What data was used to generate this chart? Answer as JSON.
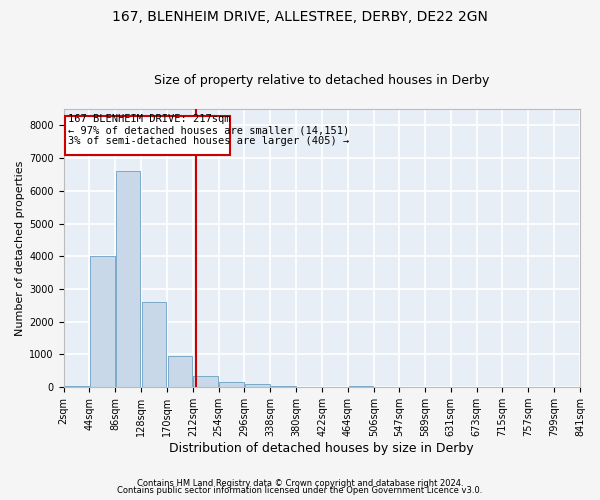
{
  "title1": "167, BLENHEIM DRIVE, ALLESTREE, DERBY, DE22 2GN",
  "title2": "Size of property relative to detached houses in Derby",
  "xlabel": "Distribution of detached houses by size in Derby",
  "ylabel": "Number of detached properties",
  "annotation_line1": "167 BLENHEIM DRIVE: 217sqm",
  "annotation_line2": "← 97% of detached houses are smaller (14,151)",
  "annotation_line3": "3% of semi-detached houses are larger (405) →",
  "footer1": "Contains HM Land Registry data © Crown copyright and database right 2024.",
  "footer2": "Contains public sector information licensed under the Open Government Licence v3.0.",
  "property_size": 217,
  "bin_edges": [
    2,
    44,
    86,
    128,
    170,
    212,
    254,
    296,
    338,
    380,
    422,
    464,
    506,
    547,
    589,
    631,
    673,
    715,
    757,
    799,
    841
  ],
  "bar_heights": [
    50,
    4000,
    6600,
    2600,
    950,
    350,
    150,
    100,
    50,
    0,
    0,
    50,
    0,
    0,
    0,
    0,
    0,
    0,
    0,
    0
  ],
  "bar_color": "#c8d8e8",
  "bar_edgecolor": "#7aaac8",
  "vline_color": "#cc0000",
  "vline_x": 217,
  "box_color": "#cc0000",
  "ylim": [
    0,
    8500
  ],
  "yticks": [
    0,
    1000,
    2000,
    3000,
    4000,
    5000,
    6000,
    7000,
    8000
  ],
  "bg_color": "#e8eef5",
  "grid_color": "#ffffff",
  "fig_bg_color": "#f5f5f5",
  "title1_fontsize": 10,
  "title2_fontsize": 9,
  "xlabel_fontsize": 9,
  "ylabel_fontsize": 8,
  "annotation_fontsize": 7.5,
  "tick_fontsize": 7,
  "footer_fontsize": 6
}
